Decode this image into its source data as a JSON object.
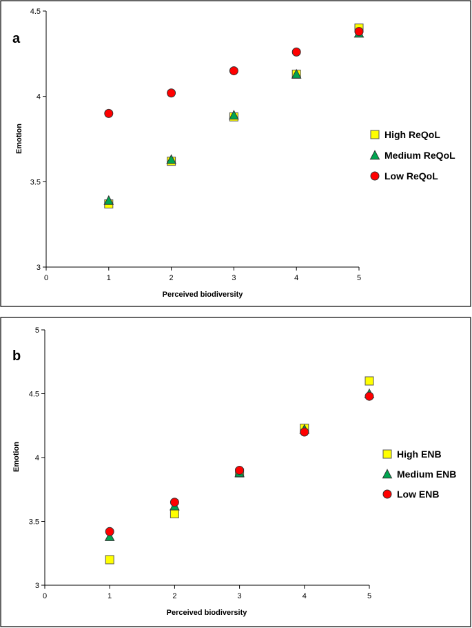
{
  "chart_data": [
    {
      "type": "scatter",
      "panel": "a",
      "xlabel": "Perceived biodiversity",
      "ylabel": "Emotion",
      "xlim": [
        0,
        5
      ],
      "ylim": [
        3,
        4.5
      ],
      "xticks": [
        0,
        1,
        2,
        3,
        4,
        5
      ],
      "yticks": [
        3,
        3.5,
        4,
        4.5
      ],
      "legend_position": "right",
      "series": [
        {
          "name": "High ReQoL",
          "marker": "square",
          "color": "#ffff00",
          "x": [
            1,
            2,
            3,
            4,
            5
          ],
          "y": [
            3.37,
            3.62,
            3.88,
            4.13,
            4.4
          ]
        },
        {
          "name": "Medium ReQoL",
          "marker": "triangle",
          "color": "#00a550",
          "x": [
            1,
            2,
            3,
            4,
            5
          ],
          "y": [
            3.39,
            3.63,
            3.89,
            4.13,
            4.37
          ]
        },
        {
          "name": "Low ReQoL",
          "marker": "circle",
          "color": "#ff0000",
          "x": [
            1,
            2,
            3,
            4,
            5
          ],
          "y": [
            3.9,
            4.02,
            4.15,
            4.26,
            4.38
          ]
        }
      ]
    },
    {
      "type": "scatter",
      "panel": "b",
      "xlabel": "Perceived biodiversity",
      "ylabel": "Emotion",
      "xlim": [
        0,
        5
      ],
      "ylim": [
        3,
        5
      ],
      "xticks": [
        0,
        1,
        2,
        3,
        4,
        5
      ],
      "yticks": [
        3,
        3.5,
        4,
        4.5,
        5
      ],
      "legend_position": "right",
      "series": [
        {
          "name": "High ENB",
          "marker": "square",
          "color": "#ffff00",
          "x": [
            1,
            2,
            3,
            4,
            5
          ],
          "y": [
            3.2,
            3.56,
            3.88,
            4.23,
            4.6
          ]
        },
        {
          "name": "Medium ENB",
          "marker": "triangle",
          "color": "#00a550",
          "x": [
            1,
            2,
            3,
            4,
            5
          ],
          "y": [
            3.38,
            3.62,
            3.88,
            4.22,
            4.5
          ]
        },
        {
          "name": "Low ENB",
          "marker": "circle",
          "color": "#ff0000",
          "x": [
            1,
            2,
            3,
            4,
            5
          ],
          "y": [
            3.42,
            3.65,
            3.9,
            4.2,
            4.48
          ]
        }
      ]
    }
  ]
}
